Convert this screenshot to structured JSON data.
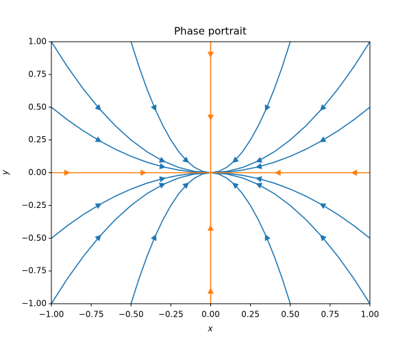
{
  "chart_data": {
    "type": "phase-portrait",
    "title": "Phase portrait",
    "x_label": "x",
    "y_label": "y",
    "xlim": [
      -1,
      1
    ],
    "ylim": [
      -1,
      1
    ],
    "xticks": [
      {
        "value": -1,
        "label": "−1.00"
      },
      {
        "value": -0.75,
        "label": "−0.75"
      },
      {
        "value": -0.5,
        "label": "−0.50"
      },
      {
        "value": -0.25,
        "label": "−0.25"
      },
      {
        "value": 0,
        "label": "0.00"
      },
      {
        "value": 0.25,
        "label": "0.25"
      },
      {
        "value": 0.5,
        "label": "0.50"
      },
      {
        "value": 0.75,
        "label": "0.75"
      },
      {
        "value": 1,
        "label": "1.00"
      }
    ],
    "yticks": [
      {
        "value": -1,
        "label": "−1.00"
      },
      {
        "value": -0.75,
        "label": "−0.75"
      },
      {
        "value": -0.5,
        "label": "−0.50"
      },
      {
        "value": -0.25,
        "label": "−0.25"
      },
      {
        "value": 0,
        "label": "0.00"
      },
      {
        "value": 0.25,
        "label": "0.25"
      },
      {
        "value": 0.5,
        "label": "0.50"
      },
      {
        "value": 0.75,
        "label": "0.75"
      },
      {
        "value": 1,
        "label": "1.00"
      }
    ],
    "series": [
      {
        "color": "#1f77b4",
        "x": [
          -0.5,
          -0.45,
          -0.4,
          -0.35,
          -0.3,
          -0.25,
          -0.2,
          -0.15,
          -0.1,
          -0.05,
          0,
          0.05,
          0.1,
          0.15,
          0.2,
          0.25,
          0.3,
          0.35,
          0.4,
          0.45,
          0.5
        ],
        "values": [
          1,
          0.81,
          0.64,
          0.49,
          0.36,
          0.25,
          0.16,
          0.09,
          0.04,
          0.01,
          0,
          0.01,
          0.04,
          0.09,
          0.16,
          0.25,
          0.36,
          0.49,
          0.64,
          0.81,
          1
        ]
      },
      {
        "color": "#1f77b4",
        "x": [
          -1,
          -0.9,
          -0.8,
          -0.7,
          -0.6,
          -0.5,
          -0.4,
          -0.3,
          -0.2,
          -0.1,
          0,
          0.1,
          0.2,
          0.3,
          0.4,
          0.5,
          0.6,
          0.7,
          0.8,
          0.9,
          1
        ],
        "values": [
          1,
          0.81,
          0.64,
          0.49,
          0.36,
          0.25,
          0.16,
          0.09,
          0.04,
          0.01,
          0,
          0.01,
          0.04,
          0.09,
          0.16,
          0.25,
          0.36,
          0.49,
          0.64,
          0.81,
          1
        ]
      },
      {
        "color": "#1f77b4",
        "x": [
          -1,
          -0.9,
          -0.8,
          -0.7,
          -0.6,
          -0.5,
          -0.4,
          -0.3,
          -0.2,
          -0.1,
          0,
          0.1,
          0.2,
          0.3,
          0.4,
          0.5,
          0.6,
          0.7,
          0.8,
          0.9,
          1
        ],
        "values": [
          0.5,
          0.405,
          0.32,
          0.245,
          0.18,
          0.125,
          0.08,
          0.045,
          0.02,
          0.005,
          0,
          0.005,
          0.02,
          0.045,
          0.08,
          0.125,
          0.18,
          0.245,
          0.32,
          0.405,
          0.5
        ]
      },
      {
        "color": "#1f77b4",
        "x": [
          -1,
          -0.9,
          -0.8,
          -0.7,
          -0.6,
          -0.5,
          -0.4,
          -0.3,
          -0.2,
          -0.1,
          0,
          0.1,
          0.2,
          0.3,
          0.4,
          0.5,
          0.6,
          0.7,
          0.8,
          0.9,
          1
        ],
        "values": [
          -0.5,
          -0.405,
          -0.32,
          -0.245,
          -0.18,
          -0.125,
          -0.08,
          -0.045,
          -0.02,
          -0.005,
          0,
          -0.005,
          -0.02,
          -0.045,
          -0.08,
          -0.125,
          -0.18,
          -0.245,
          -0.32,
          -0.405,
          -0.5
        ]
      },
      {
        "color": "#1f77b4",
        "x": [
          -1,
          -0.9,
          -0.8,
          -0.7,
          -0.6,
          -0.5,
          -0.4,
          -0.3,
          -0.2,
          -0.1,
          0,
          0.1,
          0.2,
          0.3,
          0.4,
          0.5,
          0.6,
          0.7,
          0.8,
          0.9,
          1
        ],
        "values": [
          -1,
          -0.81,
          -0.64,
          -0.49,
          -0.36,
          -0.25,
          -0.16,
          -0.09,
          -0.04,
          -0.01,
          0,
          -0.01,
          -0.04,
          -0.09,
          -0.16,
          -0.25,
          -0.36,
          -0.49,
          -0.64,
          -0.81,
          -1
        ]
      },
      {
        "color": "#1f77b4",
        "x": [
          -0.5,
          -0.45,
          -0.4,
          -0.35,
          -0.3,
          -0.25,
          -0.2,
          -0.15,
          -0.1,
          -0.05,
          0,
          0.05,
          0.1,
          0.15,
          0.2,
          0.25,
          0.3,
          0.35,
          0.4,
          0.45,
          0.5
        ],
        "values": [
          -1,
          -0.81,
          -0.64,
          -0.49,
          -0.36,
          -0.25,
          -0.16,
          -0.09,
          -0.04,
          -0.01,
          0,
          -0.01,
          -0.04,
          -0.09,
          -0.16,
          -0.25,
          -0.36,
          -0.49,
          -0.64,
          -0.81,
          -1
        ]
      },
      {
        "color": "#ff7f0e",
        "x": [
          -1,
          1
        ],
        "values": [
          0,
          0
        ]
      },
      {
        "color": "#ff7f0e",
        "x": [
          0,
          0
        ],
        "values": [
          -1,
          1
        ]
      }
    ]
  }
}
